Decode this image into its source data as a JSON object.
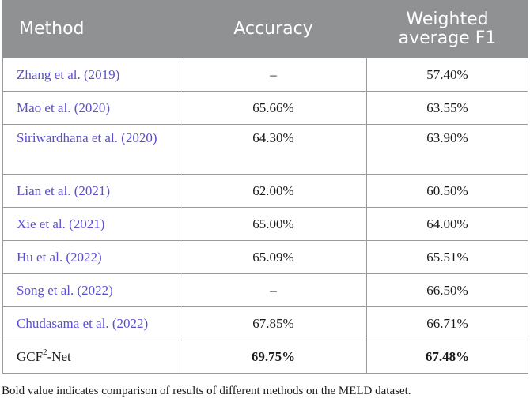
{
  "table": {
    "headers": {
      "method": "Method",
      "accuracy": "Accuracy",
      "f1_line1": "Weighted",
      "f1_line2": "average F1"
    },
    "rows": [
      {
        "author": "Zhang et al. (",
        "year": "2019",
        "close": ")",
        "accuracy": "–",
        "f1": "57.40%"
      },
      {
        "author": "Mao et al. (",
        "year": "2020",
        "close": ")",
        "accuracy": "65.66%",
        "f1": "63.55%"
      },
      {
        "author": "Siriwardhana et al. (",
        "year": "2020",
        "close": ")",
        "accuracy": "64.30%",
        "f1": "63.90%"
      },
      {
        "author": "Lian et al. (",
        "year": "2021",
        "close": ")",
        "accuracy": "62.00%",
        "f1": "60.50%"
      },
      {
        "author": "Xie et al. (",
        "year": "2021",
        "close": ")",
        "accuracy": "65.00%",
        "f1": "64.00%"
      },
      {
        "author": "Hu et al. (",
        "year": "2022",
        "close": ")",
        "accuracy": "65.09%",
        "f1": "65.51%"
      },
      {
        "author": "Song et al. (",
        "year": "2022",
        "close": ")",
        "accuracy": "–",
        "f1": "66.50%"
      },
      {
        "author": "Chudasama et al. (",
        "year": "2022",
        "close": ")",
        "accuracy": "67.85%",
        "f1": "66.71%"
      }
    ],
    "ours": {
      "name_prefix": "GCF",
      "name_sup": "2",
      "name_suffix": "-Net",
      "accuracy": "69.75%",
      "f1": "67.48%"
    }
  },
  "footnote": "Bold value indicates comparison of results of different methods on the MELD dataset.",
  "colors": {
    "header_bg": "#8f9193",
    "header_text": "#ffffff",
    "link": "#5a4fcf",
    "border": "#9a9a9a"
  }
}
